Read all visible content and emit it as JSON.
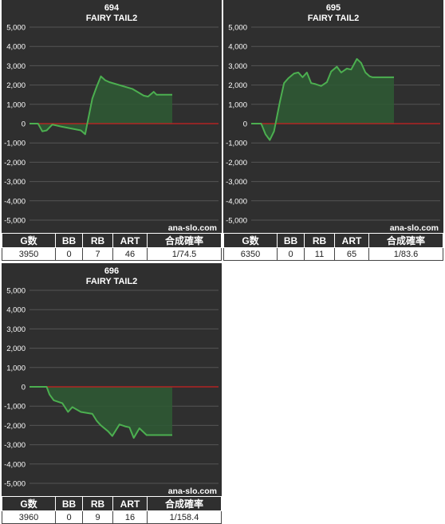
{
  "panels": [
    {
      "machine_no": "694",
      "machine_name": "FAIRY TAIL2",
      "watermark": "ana-slo.com",
      "stats_headers": [
        "G数",
        "BB",
        "RB",
        "ART",
        "合成確率"
      ],
      "stats_values": [
        "3950",
        "0",
        "7",
        "46",
        "1/74.5"
      ]
    },
    {
      "machine_no": "695",
      "machine_name": "FAIRY TAIL2",
      "watermark": "ana-slo.com",
      "stats_headers": [
        "G数",
        "BB",
        "RB",
        "ART",
        "合成確率"
      ],
      "stats_values": [
        "6350",
        "0",
        "11",
        "65",
        "1/83.6"
      ]
    },
    {
      "machine_no": "696",
      "machine_name": "FAIRY TAIL2",
      "watermark": "ana-slo.com",
      "stats_headers": [
        "G数",
        "BB",
        "RB",
        "ART",
        "合成確率"
      ],
      "stats_values": [
        "3960",
        "0",
        "9",
        "16",
        "1/158.4"
      ]
    }
  ],
  "colors": {
    "background": "#2f2f2f",
    "grid": "#555555",
    "zero_line": "#cc2222",
    "line": "#4caf50",
    "fill": "#2e5a34",
    "text": "#ffffff"
  },
  "chart_data": [
    {
      "type": "area",
      "title": "694 FAIRY TAIL2",
      "ylim": [
        -5000,
        5000
      ],
      "yticks": [
        5000,
        4000,
        3000,
        2000,
        1000,
        0,
        -1000,
        -2000,
        -3000,
        -4000,
        -5000
      ],
      "ytick_labels": [
        "5,000",
        "4,000",
        "3,000",
        "2,000",
        "1,000",
        "0",
        "-1,000",
        "-2,000",
        "-3,000",
        "-4,000",
        "-5,000"
      ],
      "grid": true,
      "x": [
        0,
        0.06,
        0.09,
        0.12,
        0.16,
        0.22,
        0.36,
        0.39,
        0.41,
        0.44,
        0.47,
        0.5,
        0.53,
        0.56,
        0.72,
        0.8,
        0.83,
        0.87,
        0.89,
        1.0
      ],
      "values": [
        0,
        0,
        -400,
        -350,
        -50,
        -150,
        -350,
        -550,
        200,
        1300,
        1900,
        2450,
        2250,
        2150,
        1800,
        1450,
        1400,
        1650,
        1500,
        1500
      ]
    },
    {
      "type": "area",
      "title": "695 FAIRY TAIL2",
      "ylim": [
        -5000,
        5000
      ],
      "yticks": [
        5000,
        4000,
        3000,
        2000,
        1000,
        0,
        -1000,
        -2000,
        -3000,
        -4000,
        -5000
      ],
      "ytick_labels": [
        "5,000",
        "4,000",
        "3,000",
        "2,000",
        "1,000",
        "0",
        "-1,000",
        "-2,000",
        "-3,000",
        "-4,000",
        "-5,000"
      ],
      "grid": true,
      "x": [
        0,
        0.07,
        0.1,
        0.13,
        0.16,
        0.2,
        0.23,
        0.26,
        0.3,
        0.33,
        0.36,
        0.39,
        0.42,
        0.45,
        0.49,
        0.53,
        0.56,
        0.6,
        0.63,
        0.67,
        0.7,
        0.74,
        0.77,
        0.8,
        0.83,
        0.85,
        0.87,
        0.91,
        1.0
      ],
      "values": [
        0,
        0,
        -550,
        -850,
        -400,
        1100,
        2100,
        2350,
        2600,
        2650,
        2400,
        2650,
        2100,
        2050,
        1950,
        2150,
        2700,
        2950,
        2650,
        2850,
        2800,
        3350,
        3150,
        2650,
        2450,
        2400,
        2400,
        2400,
        2400
      ]
    },
    {
      "type": "area",
      "title": "696 FAIRY TAIL2",
      "ylim": [
        -5000,
        5000
      ],
      "yticks": [
        5000,
        4000,
        3000,
        2000,
        1000,
        0,
        -1000,
        -2000,
        -3000,
        -4000,
        -5000
      ],
      "ytick_labels": [
        "5,000",
        "4,000",
        "3,000",
        "2,000",
        "1,000",
        "0",
        "-1,000",
        "-2,000",
        "-3,000",
        "-4,000",
        "-5,000"
      ],
      "grid": true,
      "x": [
        0,
        0.12,
        0.14,
        0.17,
        0.23,
        0.27,
        0.3,
        0.36,
        0.44,
        0.47,
        0.5,
        0.55,
        0.58,
        0.63,
        0.67,
        0.7,
        0.73,
        0.77,
        0.82,
        1.0
      ],
      "values": [
        0,
        0,
        -400,
        -700,
        -850,
        -1300,
        -1050,
        -1300,
        -1400,
        -1750,
        -2000,
        -2300,
        -2550,
        -1950,
        -2050,
        -2100,
        -2650,
        -2150,
        -2500,
        -2500
      ]
    }
  ]
}
